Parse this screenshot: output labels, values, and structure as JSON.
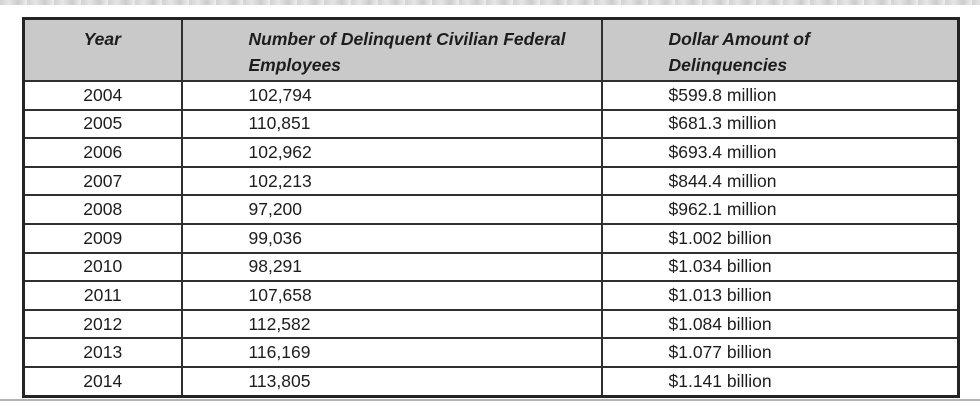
{
  "artifacts": {
    "top_band_color": "#cdcdcd",
    "bottom_line_color": "#b3b3b3"
  },
  "table": {
    "header_bg": "#c9c9c9",
    "border_color": "#242424",
    "columns": [
      {
        "line1": "Year",
        "line2": ""
      },
      {
        "line1": "Number of Delinquent Civilian Federal",
        "line2": "Employees"
      },
      {
        "line1": "Dollar Amount of",
        "line2": "Delinquencies"
      }
    ],
    "rows": [
      {
        "year": "2004",
        "employees": "102,794",
        "amount": "$599.8 million"
      },
      {
        "year": "2005",
        "employees": "110,851",
        "amount": "$681.3 million"
      },
      {
        "year": "2006",
        "employees": "102,962",
        "amount": "$693.4 million"
      },
      {
        "year": "2007",
        "employees": "102,213",
        "amount": "$844.4 million"
      },
      {
        "year": "2008",
        "employees": "97,200",
        "amount": "$962.1 million"
      },
      {
        "year": "2009",
        "employees": "99,036",
        "amount": "$1.002 billion"
      },
      {
        "year": "2010",
        "employees": "98,291",
        "amount": "$1.034 billion"
      },
      {
        "year": "2011",
        "employees": "107,658",
        "amount": "$1.013 billion"
      },
      {
        "year": "2012",
        "employees": "112,582",
        "amount": "$1.084 billion"
      },
      {
        "year": "2013",
        "employees": "116,169",
        "amount": "$1.077 billion"
      },
      {
        "year": "2014",
        "employees": "113,805",
        "amount": "$1.141 billion"
      }
    ]
  }
}
